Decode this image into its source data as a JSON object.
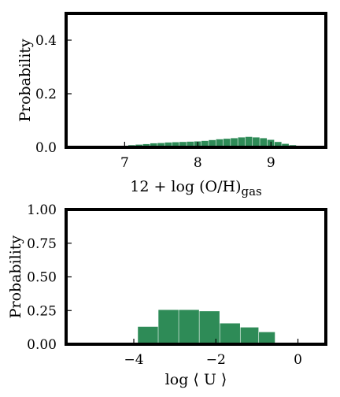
{
  "chart_data": [
    {
      "type": "bar",
      "xlabel": "12 + log (O/H)",
      "xlabel_subscript": "gas",
      "ylabel": "Probability",
      "xlim": [
        6.2,
        9.75
      ],
      "ylim": [
        0,
        0.5
      ],
      "xticks": [
        7,
        8,
        9
      ],
      "yticks": [
        0.0,
        0.2,
        0.4
      ],
      "ytick_labels": [
        "0.0",
        "0.2",
        "0.4"
      ],
      "bar_color": "#2e8b57",
      "bin_width": 0.1,
      "bins": [
        {
          "x0": 6.95,
          "value": 0.004
        },
        {
          "x0": 7.05,
          "value": 0.008
        },
        {
          "x0": 7.15,
          "value": 0.01
        },
        {
          "x0": 7.25,
          "value": 0.012
        },
        {
          "x0": 7.35,
          "value": 0.015
        },
        {
          "x0": 7.45,
          "value": 0.016
        },
        {
          "x0": 7.55,
          "value": 0.018
        },
        {
          "x0": 7.65,
          "value": 0.019
        },
        {
          "x0": 7.75,
          "value": 0.02
        },
        {
          "x0": 7.85,
          "value": 0.021
        },
        {
          "x0": 7.95,
          "value": 0.022
        },
        {
          "x0": 8.05,
          "value": 0.024
        },
        {
          "x0": 8.15,
          "value": 0.027
        },
        {
          "x0": 8.25,
          "value": 0.03
        },
        {
          "x0": 8.35,
          "value": 0.032
        },
        {
          "x0": 8.45,
          "value": 0.034
        },
        {
          "x0": 8.55,
          "value": 0.037
        },
        {
          "x0": 8.65,
          "value": 0.039
        },
        {
          "x0": 8.75,
          "value": 0.037
        },
        {
          "x0": 8.85,
          "value": 0.034
        },
        {
          "x0": 8.95,
          "value": 0.028
        },
        {
          "x0": 9.05,
          "value": 0.02
        },
        {
          "x0": 9.15,
          "value": 0.013
        },
        {
          "x0": 9.25,
          "value": 0.008
        },
        {
          "x0": 9.35,
          "value": 0.004
        }
      ]
    },
    {
      "type": "bar",
      "xlabel": "log ⟨ U ⟩",
      "ylabel": "Probability",
      "xlim": [
        -5.65,
        0.68
      ],
      "ylim": [
        0,
        1.0
      ],
      "xticks": [
        -4,
        -2,
        0
      ],
      "xtick_labels": [
        "−4",
        "−2",
        "0"
      ],
      "yticks": [
        0.0,
        0.25,
        0.5,
        0.75,
        1.0
      ],
      "ytick_labels": [
        "0.00",
        "0.25",
        "0.50",
        "0.75",
        "1.00"
      ],
      "bar_color": "#2e8b57",
      "bins": [
        {
          "x0": -3.9,
          "x1": -3.4,
          "value": 0.13
        },
        {
          "x0": -3.4,
          "x1": -2.9,
          "value": 0.255
        },
        {
          "x0": -2.9,
          "x1": -2.4,
          "value": 0.255
        },
        {
          "x0": -2.4,
          "x1": -1.9,
          "value": 0.245
        },
        {
          "x0": -1.9,
          "x1": -1.4,
          "value": 0.155
        },
        {
          "x0": -1.4,
          "x1": -0.95,
          "value": 0.125
        },
        {
          "x0": -0.95,
          "x1": -0.55,
          "value": 0.09
        }
      ]
    }
  ]
}
